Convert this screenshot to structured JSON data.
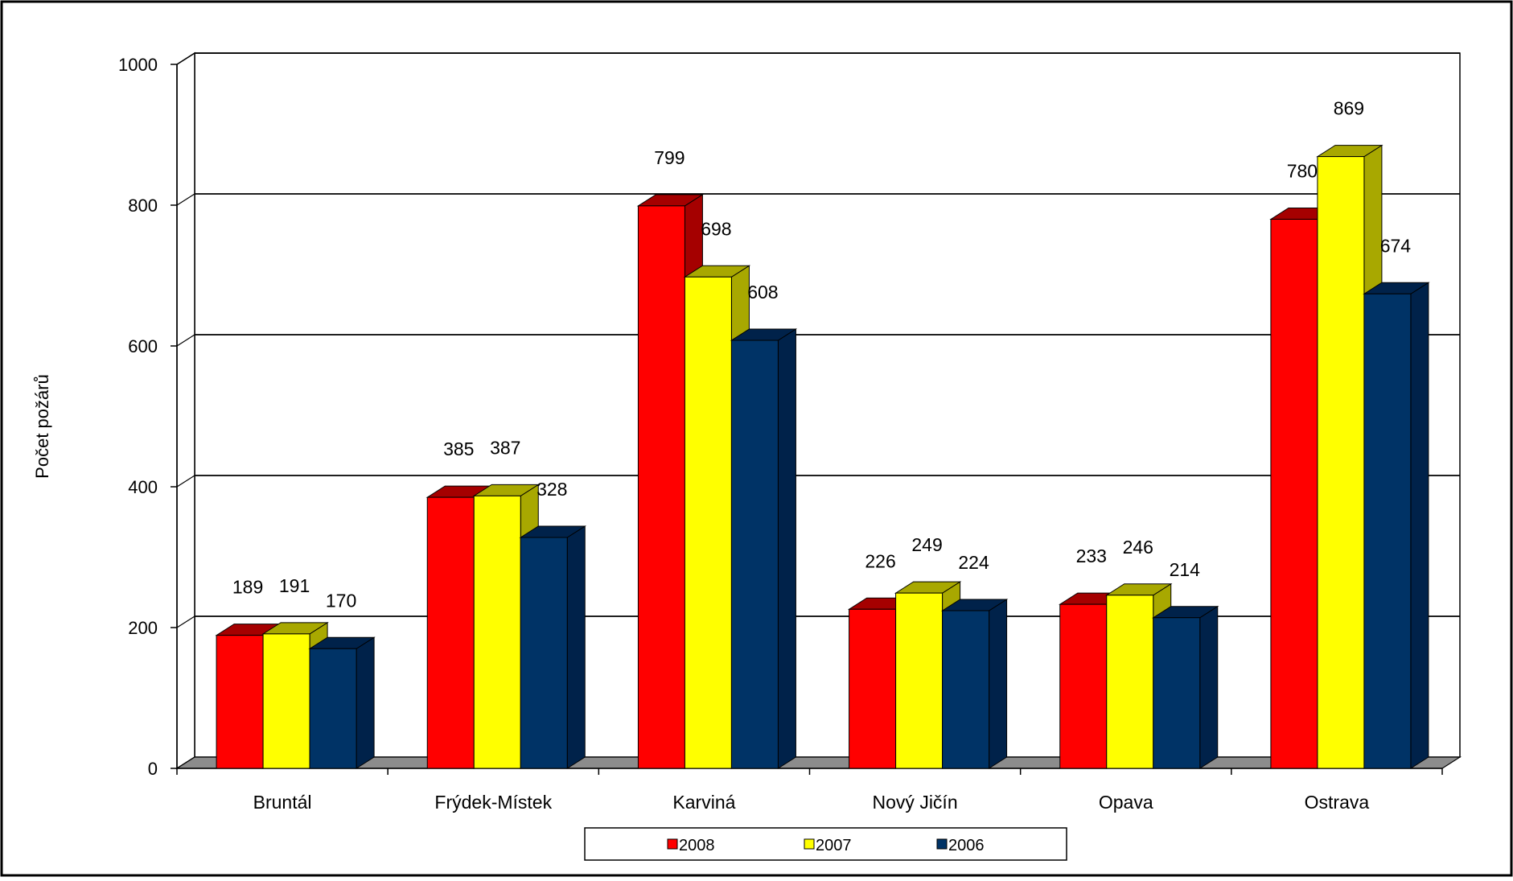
{
  "chart_data": {
    "type": "bar",
    "title": "",
    "xlabel": "",
    "ylabel": "Počet požárů",
    "ylim": [
      0,
      1000
    ],
    "yticks": [
      0,
      200,
      400,
      600,
      800,
      1000
    ],
    "grid": true,
    "legend_position": "bottom",
    "categories": [
      "Bruntál",
      "Frýdek-Místek",
      "Karviná",
      "Nový Jičín",
      "Opava",
      "Ostrava"
    ],
    "series": [
      {
        "name": "2008",
        "color": "#FF0000",
        "side_color": "#A50000",
        "values": [
          189,
          385,
          799,
          226,
          233,
          780
        ]
      },
      {
        "name": "2007",
        "color": "#FFFF00",
        "side_color": "#A8A800",
        "values": [
          191,
          387,
          698,
          249,
          246,
          869
        ]
      },
      {
        "name": "2006",
        "color": "#003366",
        "side_color": "#00224A",
        "values": [
          170,
          328,
          608,
          224,
          214,
          674
        ]
      }
    ]
  }
}
